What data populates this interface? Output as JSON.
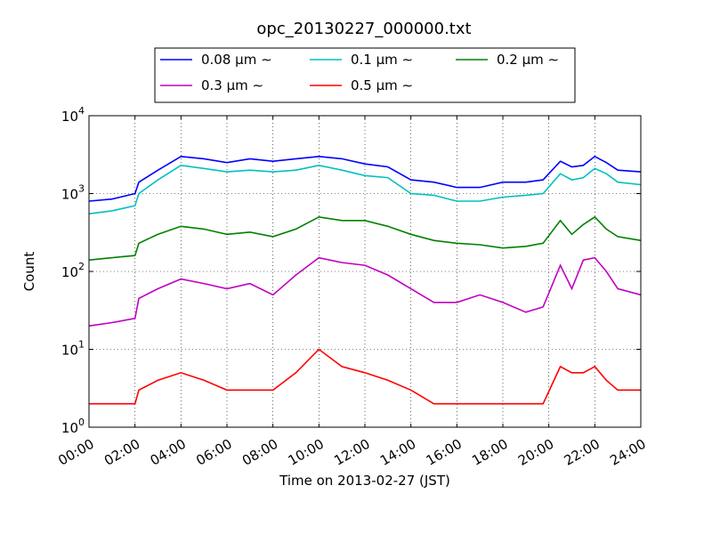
{
  "chart_data": {
    "type": "line",
    "title": "opc_20130227_000000.txt",
    "xlabel": "Time on 2013-02-27 (JST)",
    "ylabel": "Count",
    "y_scale": "log",
    "ylim": [
      1,
      10000
    ],
    "xlim": [
      "00:00",
      "24:00"
    ],
    "grid": true,
    "legend_placement": "top-center",
    "x_ticks": [
      "00:00",
      "02:00",
      "04:00",
      "06:00",
      "08:00",
      "10:00",
      "12:00",
      "14:00",
      "16:00",
      "18:00",
      "20:00",
      "22:00",
      "24:00"
    ],
    "y_ticks": [
      {
        "base": "10",
        "exp": "0"
      },
      {
        "base": "10",
        "exp": "1"
      },
      {
        "base": "10",
        "exp": "2"
      },
      {
        "base": "10",
        "exp": "3"
      },
      {
        "base": "10",
        "exp": "4"
      }
    ],
    "x": [
      "00:00",
      "01:00",
      "02:00",
      "02:10",
      "03:00",
      "04:00",
      "05:00",
      "06:00",
      "07:00",
      "08:00",
      "09:00",
      "10:00",
      "11:00",
      "12:00",
      "13:00",
      "14:00",
      "15:00",
      "16:00",
      "17:00",
      "18:00",
      "19:00",
      "19:45",
      "20:30",
      "21:00",
      "21:30",
      "22:00",
      "22:30",
      "23:00",
      "24:00"
    ],
    "series": [
      {
        "name": "0.08 µm ∼",
        "color": "#0000ff",
        "values": [
          800,
          850,
          1000,
          1400,
          2000,
          3000,
          2800,
          2500,
          2800,
          2600,
          2800,
          3000,
          2800,
          2400,
          2200,
          1500,
          1400,
          1200,
          1200,
          1400,
          1400,
          1500,
          2600,
          2200,
          2300,
          3000,
          2500,
          2000,
          1900
        ]
      },
      {
        "name": "0.1 µm ∼",
        "color": "#00c0c0",
        "values": [
          550,
          600,
          700,
          1000,
          1500,
          2300,
          2100,
          1900,
          2000,
          1900,
          2000,
          2300,
          2000,
          1700,
          1600,
          1000,
          950,
          800,
          800,
          900,
          950,
          1000,
          1800,
          1500,
          1600,
          2100,
          1800,
          1400,
          1300
        ]
      },
      {
        "name": "0.2 µm ∼",
        "color": "#008000",
        "values": [
          140,
          150,
          160,
          230,
          300,
          380,
          350,
          300,
          320,
          280,
          350,
          500,
          450,
          450,
          380,
          300,
          250,
          230,
          220,
          200,
          210,
          230,
          450,
          300,
          400,
          500,
          350,
          280,
          250
        ]
      },
      {
        "name": "0.3 µm ∼",
        "color": "#c000c0",
        "values": [
          20,
          22,
          25,
          45,
          60,
          80,
          70,
          60,
          70,
          50,
          90,
          150,
          130,
          120,
          90,
          60,
          40,
          40,
          50,
          40,
          30,
          35,
          120,
          60,
          140,
          150,
          100,
          60,
          50
        ]
      },
      {
        "name": "0.5 µm ∼",
        "color": "#ff0000",
        "values": [
          2,
          2,
          2,
          3,
          4,
          5,
          4,
          3,
          3,
          3,
          5,
          10,
          6,
          5,
          4,
          3,
          2,
          2,
          2,
          2,
          2,
          2,
          6,
          5,
          5,
          6,
          4,
          3,
          3
        ]
      }
    ]
  }
}
